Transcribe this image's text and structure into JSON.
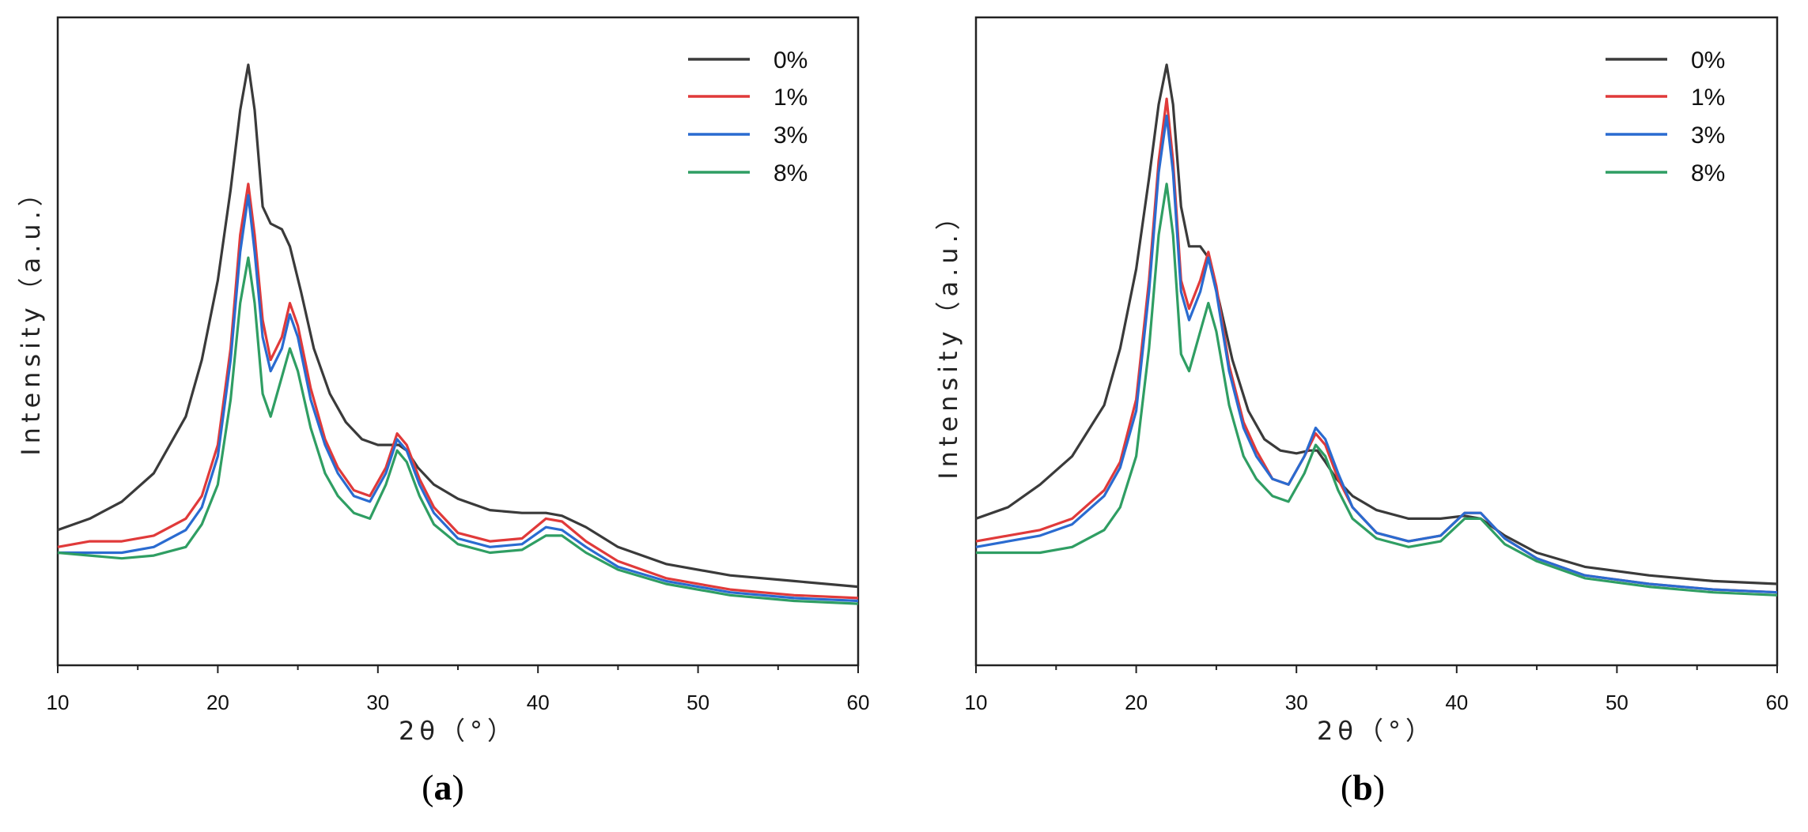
{
  "chart_data": [
    {
      "type": "line",
      "panel_label_open": "(",
      "panel_label_letter": "a",
      "panel_label_close": ")",
      "xlabel": "2θ（°）",
      "ylabel": "Intensity（a.u.）",
      "xlim": [
        10,
        60
      ],
      "ylim": [
        0,
        100
      ],
      "xticks": [
        "10",
        "20",
        "30",
        "40",
        "50",
        "60"
      ],
      "legend_position": "top-right",
      "series": [
        {
          "name": "0%",
          "color": "#3a3a3a",
          "x": [
            10,
            12,
            14,
            16,
            18,
            19,
            20,
            20.8,
            21.4,
            21.9,
            22.3,
            22.8,
            23.3,
            24,
            24.5,
            25.2,
            26,
            27,
            28,
            29,
            30,
            30.8,
            31.3,
            31.8,
            32.5,
            33.5,
            35,
            37,
            39,
            40.5,
            41.5,
            43,
            45,
            48,
            52,
            56,
            60
          ],
          "y": [
            18,
            20,
            23,
            28,
            38,
            48,
            62,
            78,
            92,
            100,
            92,
            75,
            72,
            71,
            68,
            60,
            50,
            42,
            37,
            34,
            33,
            33,
            33,
            32,
            29,
            26,
            23.5,
            21.5,
            21,
            21,
            20.5,
            18.5,
            15,
            12,
            10,
            9,
            8
          ]
        },
        {
          "name": "1%",
          "color": "#e03a3a",
          "x": [
            10,
            12,
            14,
            16,
            18,
            19,
            20,
            20.8,
            21.4,
            21.9,
            22.3,
            22.8,
            23.3,
            24,
            24.5,
            25,
            25.8,
            26.7,
            27.5,
            28.5,
            29.5,
            30.5,
            31.2,
            31.8,
            32.6,
            33.5,
            35,
            37,
            39,
            40.5,
            41.5,
            43,
            45,
            48,
            52,
            56,
            60
          ],
          "y": [
            15,
            16,
            16,
            17,
            20,
            24,
            33,
            50,
            70,
            79,
            70,
            55,
            48,
            52,
            58,
            54,
            43,
            34,
            29,
            25,
            24,
            29,
            35,
            33,
            27,
            22,
            17.5,
            16,
            16.5,
            20,
            19.5,
            16,
            12.5,
            9.5,
            7.5,
            6.5,
            6
          ]
        },
        {
          "name": "3%",
          "color": "#2a6bd0",
          "x": [
            10,
            12,
            14,
            16,
            18,
            19,
            20,
            20.8,
            21.4,
            21.9,
            22.3,
            22.8,
            23.3,
            24,
            24.5,
            25,
            25.8,
            26.7,
            27.5,
            28.5,
            29.5,
            30.5,
            31.2,
            31.8,
            32.6,
            33.5,
            35,
            37,
            39,
            40.5,
            41.5,
            43,
            45,
            48,
            52,
            56,
            60
          ],
          "y": [
            14,
            14,
            14,
            15,
            18,
            22,
            31,
            48,
            67,
            77,
            67,
            52,
            46,
            50,
            56,
            52,
            41,
            33,
            28,
            24,
            23,
            28,
            34,
            32,
            26,
            21,
            16.5,
            15,
            15.5,
            18.5,
            18,
            15,
            11.5,
            9,
            7,
            6,
            5.5
          ]
        },
        {
          "name": "8%",
          "color": "#2f9e63",
          "x": [
            10,
            12,
            14,
            16,
            18,
            19,
            20,
            20.8,
            21.4,
            21.9,
            22.3,
            22.8,
            23.3,
            24,
            24.5,
            25,
            25.8,
            26.7,
            27.5,
            28.5,
            29.5,
            30.5,
            31.2,
            31.8,
            32.6,
            33.5,
            35,
            37,
            39,
            40.5,
            41.5,
            43,
            45,
            48,
            52,
            56,
            60
          ],
          "y": [
            14,
            13.5,
            13,
            13.5,
            15,
            19,
            26,
            41,
            58,
            66,
            58,
            42,
            38,
            45,
            50,
            46,
            36,
            28,
            24,
            21,
            20,
            26,
            32,
            30,
            24,
            19,
            15.5,
            14,
            14.5,
            17,
            17,
            14,
            11,
            8.5,
            6.5,
            5.5,
            5
          ]
        }
      ]
    },
    {
      "type": "line",
      "panel_label_open": "(",
      "panel_label_letter": "b",
      "panel_label_close": ")",
      "xlabel": "2θ（°）",
      "ylabel": "Intensity（a.u.）",
      "xlim": [
        10,
        60
      ],
      "ylim": [
        0,
        100
      ],
      "xticks": [
        "10",
        "20",
        "30",
        "40",
        "50",
        "60"
      ],
      "legend_position": "top-right",
      "series": [
        {
          "name": "0%",
          "color": "#3a3a3a",
          "x": [
            10,
            12,
            14,
            16,
            18,
            19,
            20,
            20.8,
            21.4,
            21.9,
            22.3,
            22.8,
            23.3,
            24,
            24.5,
            25.2,
            26,
            27,
            28,
            29,
            30,
            30.8,
            31.3,
            31.8,
            32.5,
            33.5,
            35,
            37,
            39,
            40.5,
            41.5,
            43,
            45,
            48,
            52,
            56,
            60
          ],
          "y": [
            20,
            22,
            26,
            31,
            40,
            50,
            64,
            80,
            93,
            100,
            93,
            75,
            68,
            68,
            66,
            58,
            48,
            39,
            34,
            32,
            31.5,
            32,
            32,
            30,
            27,
            24,
            21.5,
            20,
            20,
            20.5,
            20,
            17,
            14,
            11.5,
            10,
            9,
            8.5
          ]
        },
        {
          "name": "1%",
          "color": "#e03a3a",
          "x": [
            10,
            12,
            14,
            16,
            18,
            19,
            20,
            20.8,
            21.4,
            21.9,
            22.3,
            22.8,
            23.3,
            24,
            24.5,
            25,
            25.8,
            26.7,
            27.5,
            28.5,
            29.5,
            30.5,
            31.2,
            31.8,
            32.6,
            33.5,
            35,
            37,
            39,
            40.5,
            41.5,
            43,
            45,
            48,
            52,
            56,
            60
          ],
          "y": [
            16,
            17,
            18,
            20,
            25,
            30,
            41,
            62,
            83,
            94,
            83,
            62,
            57,
            62,
            67,
            61,
            47,
            37,
            32,
            27,
            26,
            31,
            35,
            33,
            27,
            22,
            17.5,
            16,
            17,
            21,
            21,
            16.5,
            13,
            10,
            8.5,
            7.5,
            7
          ]
        },
        {
          "name": "3%",
          "color": "#2a6bd0",
          "x": [
            10,
            12,
            14,
            16,
            18,
            19,
            20,
            20.8,
            21.4,
            21.9,
            22.3,
            22.8,
            23.3,
            24,
            24.5,
            25,
            25.8,
            26.7,
            27.5,
            28.5,
            29.5,
            30.5,
            31.2,
            31.8,
            32.6,
            33.5,
            35,
            37,
            39,
            40.5,
            41.5,
            43,
            45,
            48,
            52,
            56,
            60
          ],
          "y": [
            15,
            16,
            17,
            19,
            24,
            29,
            39,
            60,
            81,
            91,
            81,
            60,
            55,
            60,
            66,
            60,
            46,
            36,
            31,
            27,
            26,
            31,
            36,
            34,
            28,
            22,
            17.5,
            16,
            17,
            21,
            21,
            16.5,
            13,
            10,
            8.5,
            7.5,
            7
          ]
        },
        {
          "name": "8%",
          "color": "#2f9e63",
          "x": [
            10,
            12,
            14,
            16,
            18,
            19,
            20,
            20.8,
            21.4,
            21.9,
            22.3,
            22.8,
            23.3,
            24,
            24.5,
            25,
            25.8,
            26.7,
            27.5,
            28.5,
            29.5,
            30.5,
            31.2,
            31.8,
            32.6,
            33.5,
            35,
            37,
            39,
            40.5,
            41.5,
            43,
            45,
            48,
            52,
            56,
            60
          ],
          "y": [
            14,
            14,
            14,
            15,
            18,
            22,
            31,
            50,
            70,
            79,
            70,
            49,
            46,
            53,
            58,
            53,
            40,
            31,
            27,
            24,
            23,
            28,
            33,
            31,
            25,
            20,
            16.5,
            15,
            16,
            20,
            20,
            15.5,
            12.5,
            9.5,
            8,
            7,
            6.5
          ]
        }
      ]
    }
  ]
}
